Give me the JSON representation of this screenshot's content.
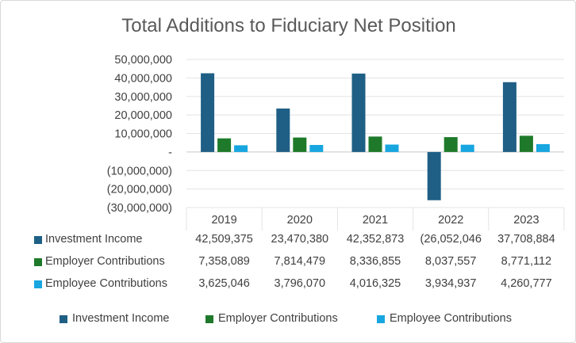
{
  "chart_data": {
    "type": "bar",
    "title": "Total Additions to Fiduciary Net Position",
    "categories": [
      "2019",
      "2020",
      "2021",
      "2022",
      "2023"
    ],
    "ylim": [
      -30000000,
      50000000
    ],
    "ytick_labels": [
      "50,000,000",
      "40,000,000",
      "30,000,000",
      "20,000,000",
      "10,000,000",
      "-",
      "(10,000,000)",
      "(20,000,000)",
      "(30,000,000)"
    ],
    "ytick_values": [
      50000000,
      40000000,
      30000000,
      20000000,
      10000000,
      0,
      -10000000,
      -20000000,
      -30000000
    ],
    "grid": true,
    "legend_position": "bottom",
    "series": [
      {
        "name": "Investment Income",
        "color": "#1f5f85",
        "values": [
          42509375,
          23470380,
          42352873,
          -26052046,
          37708884
        ],
        "display": [
          "42,509,375",
          "23,470,380",
          "42,352,873",
          "(26,052,046",
          "37,708,884"
        ]
      },
      {
        "name": "Employer Contributions",
        "color": "#1e7a2a",
        "values": [
          7358089,
          7814479,
          8336855,
          8037557,
          8771112
        ],
        "display": [
          "7,358,089",
          "7,814,479",
          "8,336,855",
          "8,037,557",
          "8,771,112"
        ]
      },
      {
        "name": "Employee Contributions",
        "color": "#17a6e0",
        "values": [
          3625046,
          3796070,
          4016325,
          3934937,
          4260777
        ],
        "display": [
          "3,625,046",
          "3,796,070",
          "4,016,325",
          "3,934,937",
          "4,260,777"
        ]
      }
    ]
  }
}
